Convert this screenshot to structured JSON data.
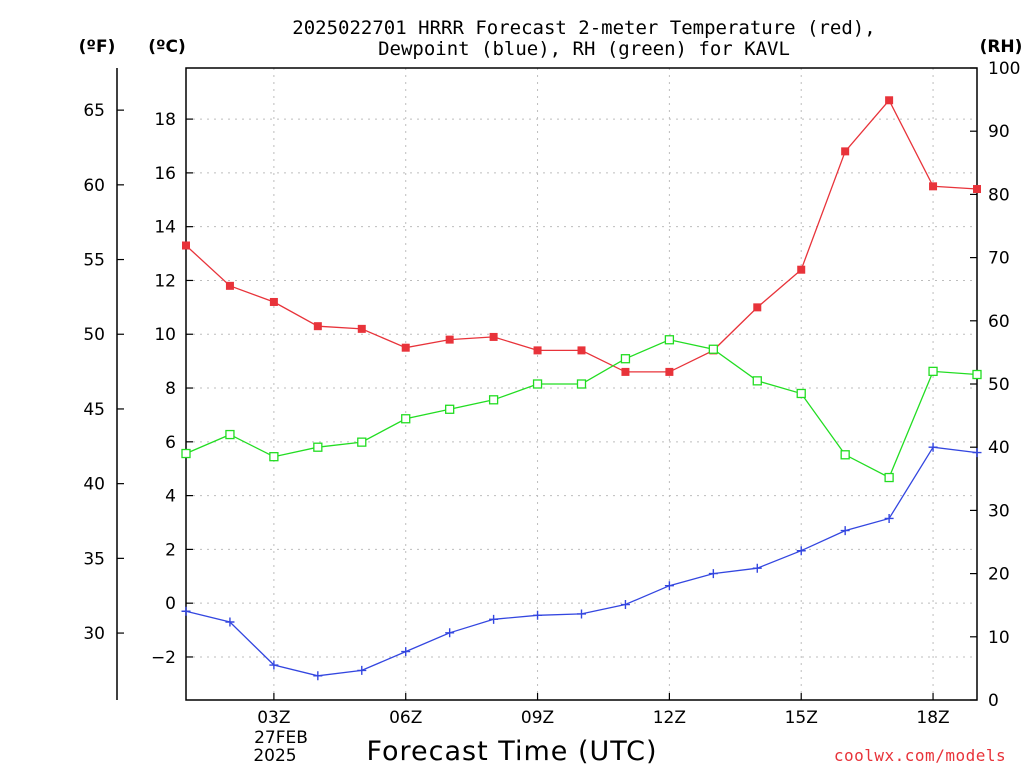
{
  "chart_data": {
    "type": "line",
    "title_line1": "2025022701 HRRR Forecast 2-meter Temperature (red),",
    "title_line2": "Dewpoint (blue), RH (green) for KAVL",
    "xlabel": "Forecast Time (UTC)",
    "credit": "coolwx.com/models",
    "unit_f": "(ºF)",
    "unit_c": "(ºC)",
    "unit_rh": "(RH)",
    "x_hours": [
      1,
      2,
      3,
      4,
      5,
      6,
      7,
      8,
      9,
      10,
      11,
      12,
      13,
      14,
      15,
      16,
      17,
      18,
      19
    ],
    "x_range": [
      1,
      19
    ],
    "x_ticks": [
      {
        "hour": 3,
        "label": "03Z"
      },
      {
        "hour": 6,
        "label": "06Z"
      },
      {
        "hour": 9,
        "label": "09Z"
      },
      {
        "hour": 12,
        "label": "12Z"
      },
      {
        "hour": 15,
        "label": "15Z"
      },
      {
        "hour": 18,
        "label": "18Z"
      }
    ],
    "date_line1": "27FEB",
    "date_line2": "2025",
    "ylim_c": [
      -3.6,
      19.9
    ],
    "yticks_c": [
      -2,
      0,
      2,
      4,
      6,
      8,
      10,
      12,
      14,
      16,
      18
    ],
    "ylim_f": [
      25.52,
      67.82
    ],
    "yticks_f": [
      30,
      35,
      40,
      45,
      50,
      55,
      60,
      65
    ],
    "ylim_rh": [
      0,
      100
    ],
    "yticks_rh": [
      0,
      10,
      20,
      30,
      40,
      50,
      60,
      70,
      80,
      90,
      100
    ],
    "grid": true,
    "series": [
      {
        "key": "temperature",
        "axis": "c",
        "color": "#e8333a",
        "marker": "filled-square",
        "values": [
          13.3,
          11.8,
          11.2,
          10.3,
          10.2,
          9.5,
          9.8,
          9.9,
          9.4,
          9.4,
          8.6,
          8.6,
          9.4,
          11.0,
          12.4,
          16.8,
          18.7,
          15.5,
          15.4
        ]
      },
      {
        "key": "dewpoint",
        "axis": "c",
        "color": "#3346e0",
        "marker": "plus",
        "values": [
          -0.3,
          -0.7,
          -2.3,
          -2.7,
          -2.5,
          -1.8,
          -1.1,
          -0.6,
          -0.45,
          -0.4,
          -0.05,
          0.65,
          1.1,
          1.3,
          1.95,
          2.7,
          3.15,
          5.8,
          5.6
        ]
      },
      {
        "key": "rh",
        "axis": "rh",
        "color": "#22dd22",
        "marker": "open-square",
        "values": [
          39,
          42,
          38.5,
          40,
          40.8,
          44.5,
          46,
          47.5,
          50,
          50,
          54,
          57,
          55.5,
          50.5,
          48.5,
          38.8,
          35.2,
          52,
          51.5
        ]
      }
    ]
  }
}
